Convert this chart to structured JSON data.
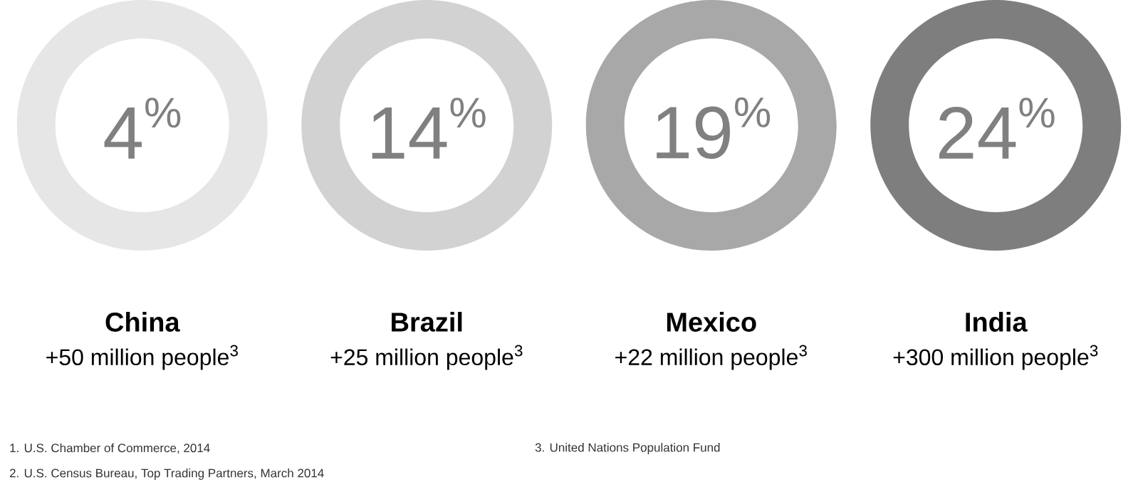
{
  "chart_data": {
    "type": "other",
    "categories": [
      "China",
      "Brazil",
      "Mexico",
      "India"
    ],
    "values": [
      4,
      14,
      19,
      24
    ],
    "data_labels": true,
    "colors": [
      "#e6e6e6",
      "#d2d2d2",
      "#a8a8a8",
      "#7e7e7e"
    ],
    "annotations": [
      "+50 million people$^{3}$",
      "+25 million people$^{3}$",
      "+22 million people$^{3}$",
      "+300 million people$^{3}$",
      "1. U.S. Chamber of Commerce, 2014",
      "2. U.S. Census Bureau, Top Trading Partners, March 2014",
      "3. United Nations Population Fund",
      {
        "text": "%",
        "x": "China"
      },
      {
        "text": "%",
        "x": "Brazil"
      },
      {
        "text": "%",
        "x": "Mexico"
      },
      {
        "text": "%",
        "x": "India"
      }
    ]
  }
}
